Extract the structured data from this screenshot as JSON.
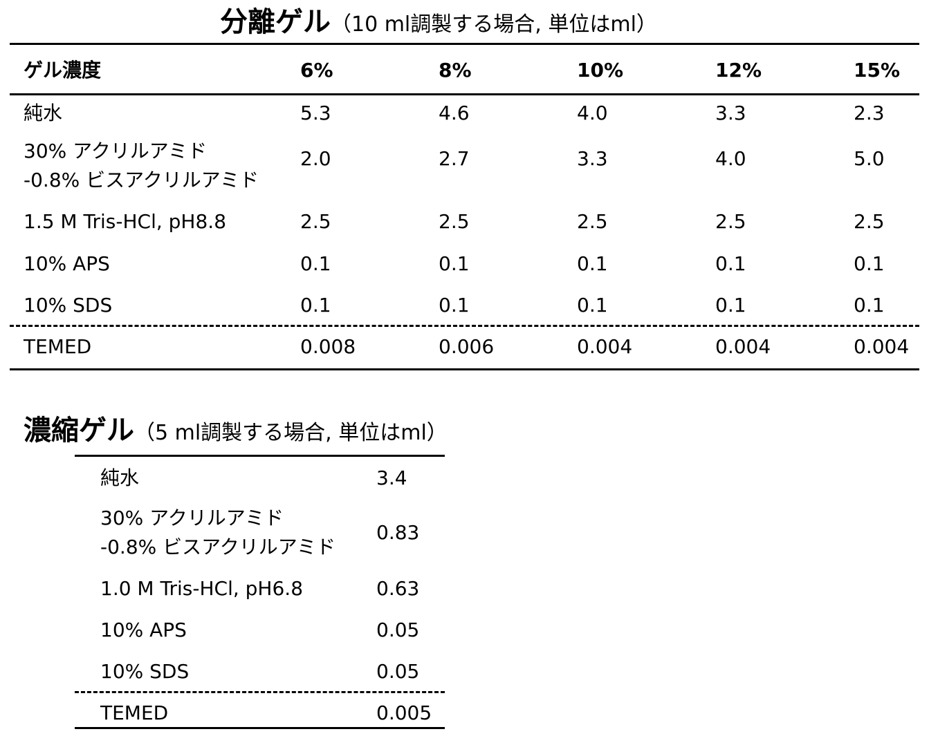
{
  "separating_gel": {
    "title_main": "分離ゲル",
    "title_sub": "（10 ml調製する場合, 単位はml）",
    "header": {
      "label": "ゲル濃度",
      "concentrations": [
        "6%",
        "8%",
        "10%",
        "12%",
        "15%"
      ]
    },
    "rows": [
      {
        "label": "純水",
        "values": [
          "5.3",
          "4.6",
          "4.0",
          "3.3",
          "2.3"
        ]
      },
      {
        "label_line1": "30% アクリルアミド",
        "label_line2": "-0.8% ビスアクリルアミド",
        "values": [
          "2.0",
          "2.7",
          "3.3",
          "4.0",
          "5.0"
        ]
      },
      {
        "label": "1.5 M Tris-HCl, pH8.8",
        "values": [
          "2.5",
          "2.5",
          "2.5",
          "2.5",
          "2.5"
        ]
      },
      {
        "label": "10% APS",
        "values": [
          "0.1",
          "0.1",
          "0.1",
          "0.1",
          "0.1"
        ]
      },
      {
        "label": "10% SDS",
        "values": [
          "0.1",
          "0.1",
          "0.1",
          "0.1",
          "0.1"
        ]
      },
      {
        "label": "TEMED",
        "values": [
          "0.008",
          "0.006",
          "0.004",
          "0.004",
          "0.004"
        ]
      }
    ]
  },
  "stacking_gel": {
    "title_main": "濃縮ゲル",
    "title_sub": "（5 ml調製する場合, 単位はml）",
    "rows": [
      {
        "label": "純水",
        "value": "3.4"
      },
      {
        "label_line1": "30% アクリルアミド",
        "label_line2": "-0.8% ビスアクリルアミド",
        "value": "0.83"
      },
      {
        "label": "1.0 M Tris-HCl, pH6.8",
        "value": "0.63"
      },
      {
        "label": "10% APS",
        "value": "0.05"
      },
      {
        "label": "10% SDS",
        "value": "0.05"
      },
      {
        "label": "TEMED",
        "value": "0.005"
      }
    ]
  }
}
